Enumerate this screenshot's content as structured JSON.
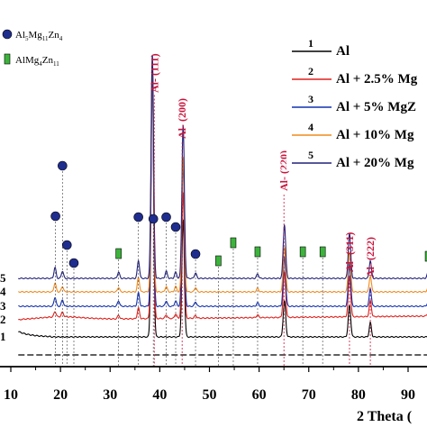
{
  "chart_data": {
    "type": "line",
    "xlabel": "2 Theta (",
    "xlim": [
      10,
      100
    ],
    "x_ticks": [
      "10",
      "20",
      "30",
      "40",
      "50",
      "60",
      "70",
      "80",
      "90"
    ],
    "markers": [
      {
        "label_main": "Al",
        "sub1": "5",
        "mid": "Mg",
        "sub2": "11",
        "mid2": "Zn",
        "sub3": "4",
        "symbol": "circle",
        "color": "#1f2d8f"
      },
      {
        "label_main": "AlMg",
        "sub1": "4",
        "mid": "Zn",
        "sub2": "11",
        "mid2": "",
        "sub3": "",
        "symbol": "square",
        "color": "#3cb43c"
      }
    ],
    "series": [
      {
        "num": "1",
        "name": "Al",
        "color": "#000000"
      },
      {
        "num": "2",
        "name": "Al + 2.5% Mg",
        "color": "#e0201b"
      },
      {
        "num": "3",
        "name": "Al + 5% MgZ",
        "color": "#1030b0"
      },
      {
        "num": "4",
        "name": "Al + 10% Mg",
        "color": "#f08a1c"
      },
      {
        "num": "5",
        "name": "Al + 20% Mg",
        "color": "#20207a"
      }
    ],
    "al_peaks": [
      {
        "label": "Al- (111)",
        "x": 38.5,
        "x_text": 38.9
      },
      {
        "label": "Al- (200)",
        "x": 44.7,
        "x_text": 44.5
      },
      {
        "label": "Al- (220)",
        "x": 65.1,
        "x_text": 65.0
      },
      {
        "label": "Al- (311)",
        "x": 78.2,
        "x_text": 78.2
      },
      {
        "label": "Al- (222)",
        "x": 82.4,
        "x_text": 82.4
      }
    ],
    "phase1_peaks": [
      19.0,
      20.4,
      21.3,
      22.7,
      35.7,
      38.7,
      41.3,
      43.2,
      47.2
    ],
    "phase2_peaks": [
      31.7,
      51.8,
      54.8,
      59.7,
      68.8,
      72.8,
      94.0
    ]
  }
}
